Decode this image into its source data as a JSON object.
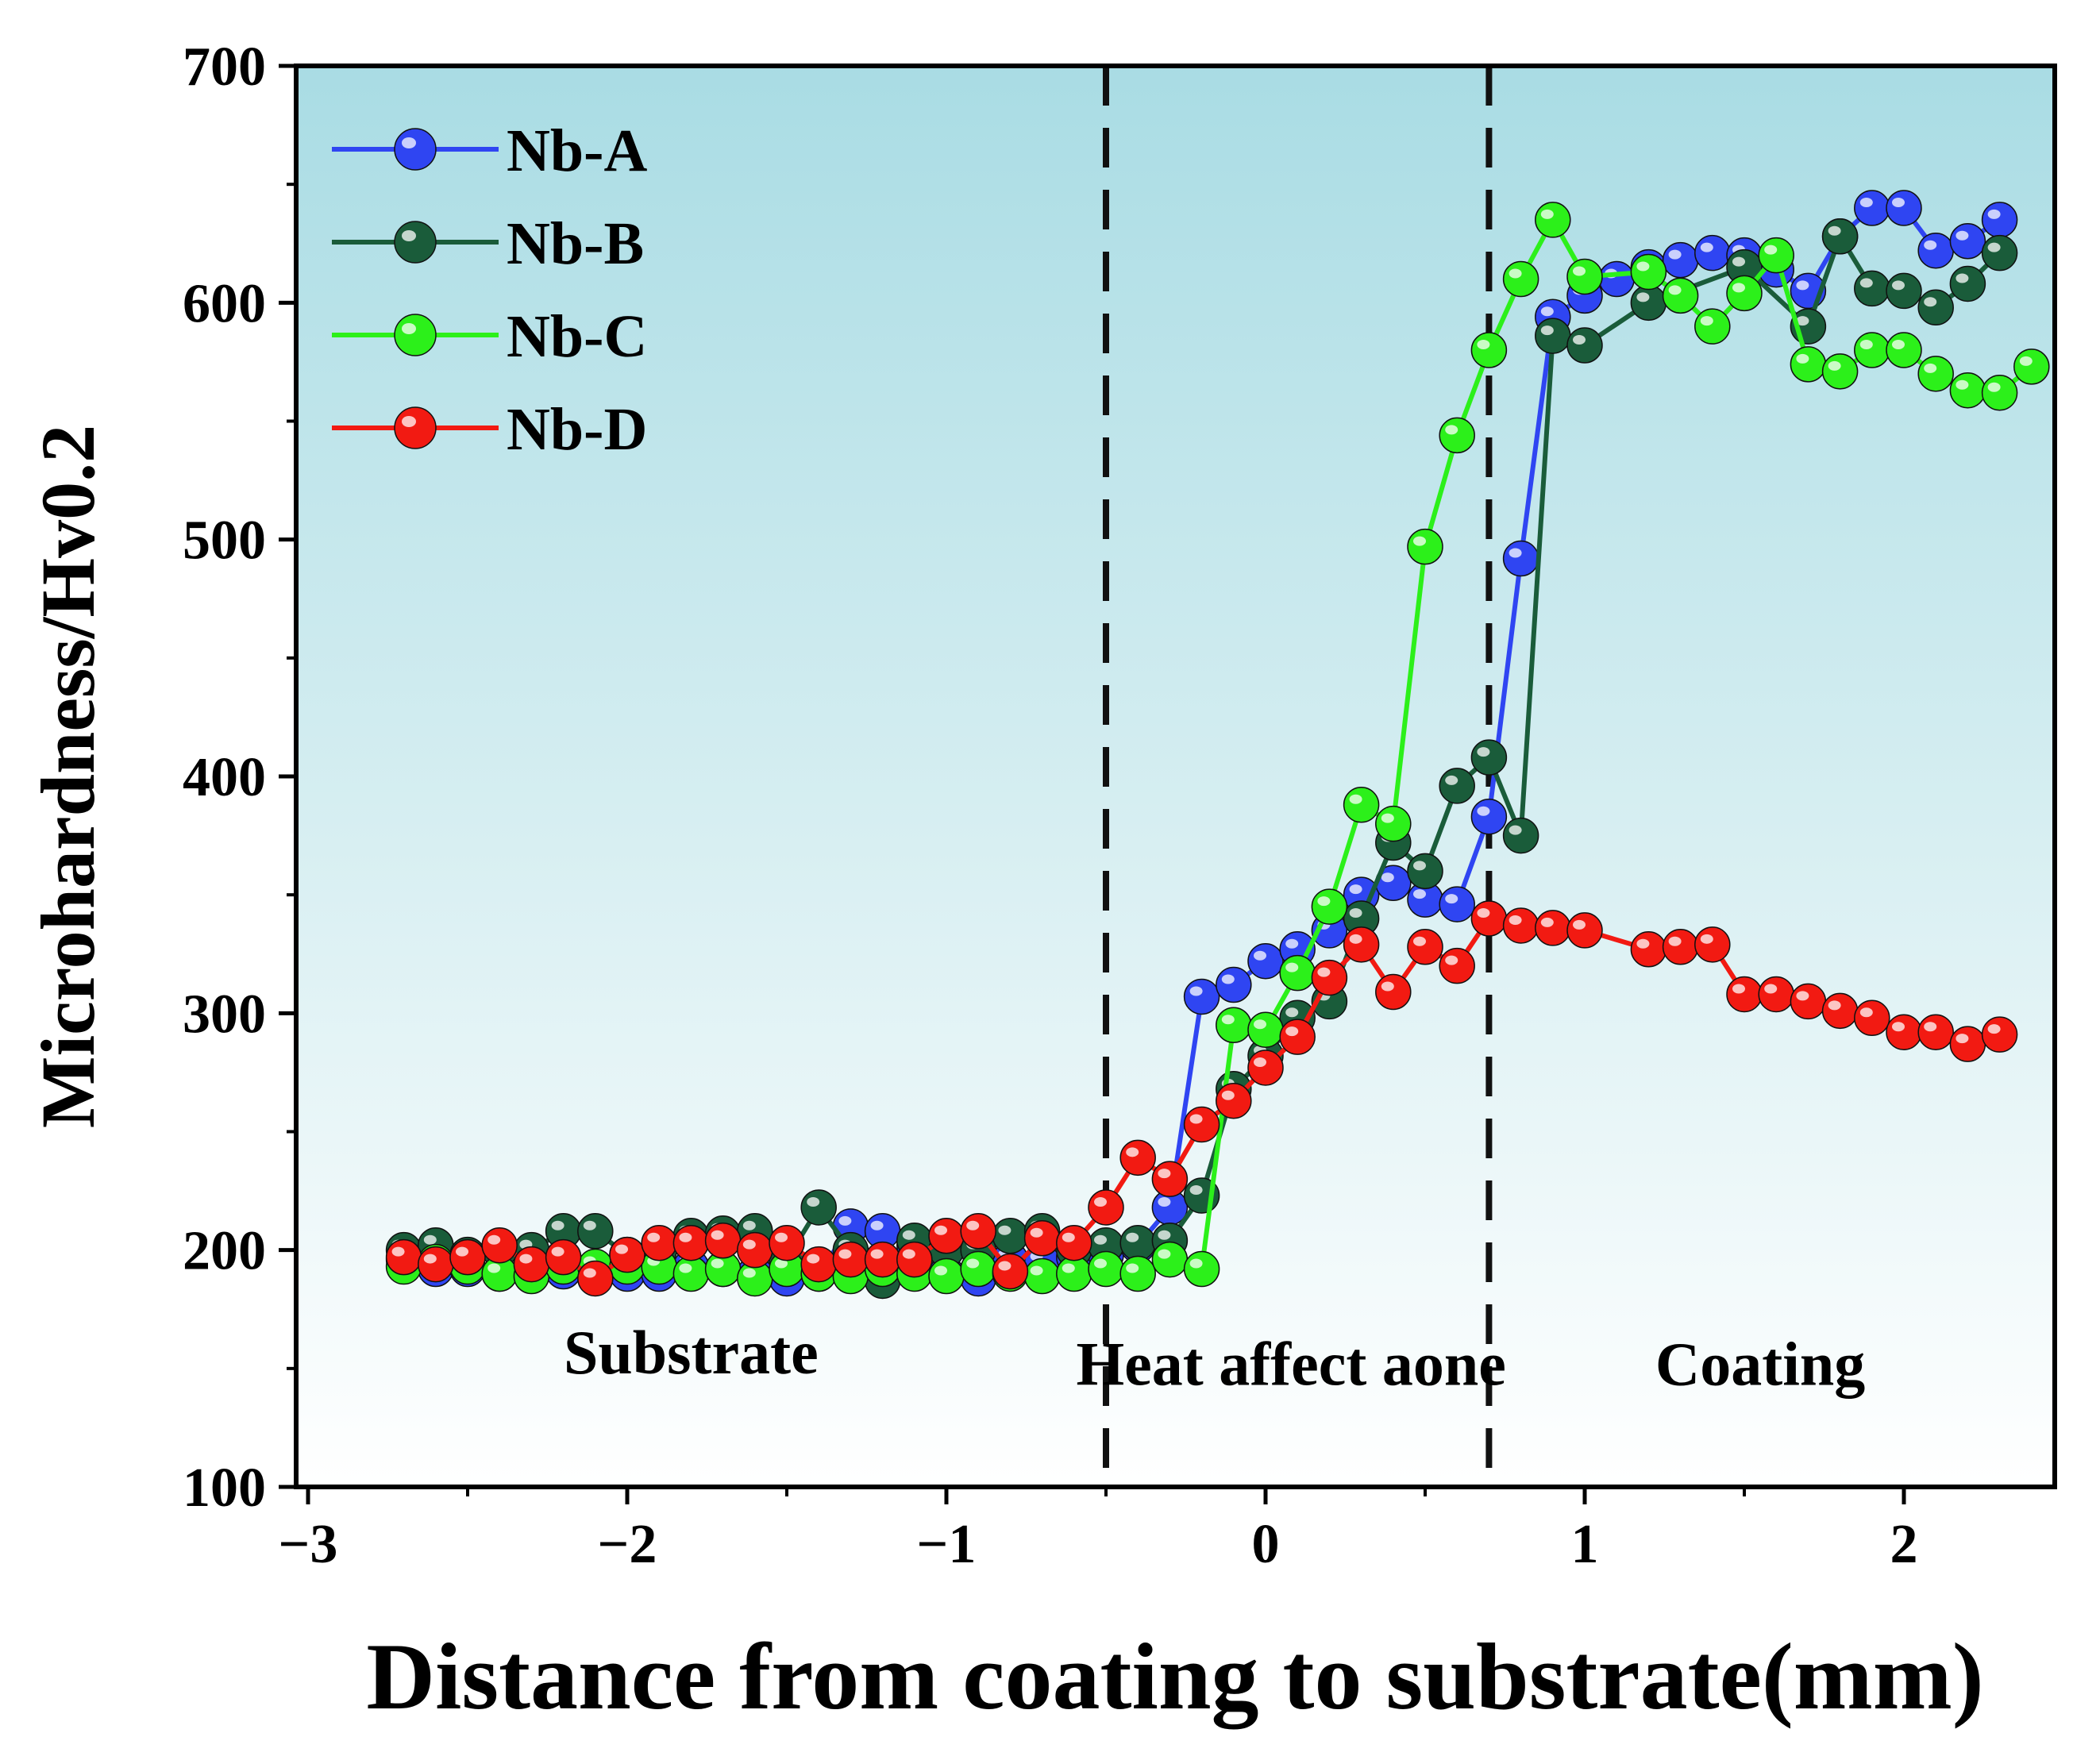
{
  "chart_data": {
    "type": "line",
    "title": "",
    "xlabel": "Distance from coating to substrate(mm)",
    "ylabel": "Microhardness/Hv0.2",
    "xlim": [
      -3,
      2.5
    ],
    "ylim": [
      100,
      700
    ],
    "xticks": [
      -3,
      -2,
      -1,
      0,
      1,
      2
    ],
    "xtick_labels": [
      "−3",
      "−2",
      "−1",
      "0",
      "1",
      "2"
    ],
    "yticks": [
      100,
      200,
      300,
      400,
      500,
      600,
      700
    ],
    "ytick_labels": [
      "100",
      "200",
      "300",
      "400",
      "500",
      "600",
      "700"
    ],
    "grid": false,
    "legend_position": "top-left",
    "boundaries": [
      -0.5,
      0.7
    ],
    "regions": [
      {
        "label": "Substrate",
        "x": -1.8,
        "y": 148
      },
      {
        "label": "Heat affect aone",
        "x": 0.08,
        "y": 143
      },
      {
        "label": "Coating",
        "x": 1.55,
        "y": 143
      }
    ],
    "series": [
      {
        "name": "Nb-A",
        "color": "#2f45f2",
        "x": [
          -2.7,
          -2.6,
          -2.5,
          -2.4,
          -2.3,
          -2.2,
          -2.1,
          -2.0,
          -1.9,
          -1.8,
          -1.7,
          -1.6,
          -1.5,
          -1.4,
          -1.3,
          -1.2,
          -1.1,
          -1.0,
          -0.9,
          -0.8,
          -0.7,
          -0.6,
          -0.5,
          -0.4,
          -0.3,
          -0.2,
          -0.1,
          0.0,
          0.1,
          0.2,
          0.3,
          0.4,
          0.5,
          0.6,
          0.7,
          0.8,
          0.9,
          1.0,
          1.1,
          1.2,
          1.3,
          1.4,
          1.5,
          1.6,
          1.7,
          1.8,
          1.9,
          2.0,
          2.1,
          2.2,
          2.3
        ],
        "y": [
          196,
          192,
          192,
          190,
          190,
          191,
          190,
          190,
          190,
          193,
          192,
          190,
          188,
          190,
          210,
          208,
          202,
          190,
          188,
          196,
          195,
          197,
          198,
          202,
          218,
          307,
          312,
          322,
          327,
          335,
          350,
          355,
          348,
          346,
          383,
          492,
          594,
          603,
          610,
          615,
          618,
          621,
          620,
          614,
          605,
          628,
          640,
          640,
          622,
          626,
          635
        ]
      },
      {
        "name": "Nb-B",
        "color": "#1a5c3a",
        "x": [
          -2.7,
          -2.6,
          -2.5,
          -2.4,
          -2.3,
          -2.2,
          -2.1,
          -2.0,
          -1.9,
          -1.8,
          -1.7,
          -1.6,
          -1.5,
          -1.4,
          -1.3,
          -1.2,
          -1.1,
          -1.0,
          -0.9,
          -0.8,
          -0.7,
          -0.6,
          -0.5,
          -0.4,
          -0.3,
          -0.2,
          -0.1,
          0.0,
          0.1,
          0.2,
          0.3,
          0.4,
          0.5,
          0.6,
          0.7,
          0.8,
          0.9,
          1.0,
          1.2,
          1.5,
          1.7,
          1.8,
          1.9,
          2.0,
          2.1,
          2.2,
          2.3
        ],
        "y": [
          200,
          202,
          198,
          200,
          200,
          208,
          208,
          198,
          200,
          206,
          207,
          208,
          196,
          218,
          200,
          187,
          204,
          200,
          200,
          206,
          208,
          200,
          202,
          203,
          204,
          223,
          268,
          282,
          298,
          305,
          340,
          372,
          360,
          396,
          408,
          375,
          586,
          582,
          600,
          615,
          590,
          628,
          606,
          605,
          598,
          608,
          621
        ]
      },
      {
        "name": "Nb-C",
        "color": "#2cf01a",
        "x": [
          -2.7,
          -2.6,
          -2.5,
          -2.4,
          -2.3,
          -2.2,
          -2.1,
          -2.0,
          -1.9,
          -1.8,
          -1.7,
          -1.6,
          -1.5,
          -1.4,
          -1.3,
          -1.2,
          -1.1,
          -1.0,
          -0.9,
          -0.8,
          -0.7,
          -0.6,
          -0.5,
          -0.4,
          -0.3,
          -0.2,
          -0.1,
          0.0,
          0.1,
          0.2,
          0.3,
          0.4,
          0.5,
          0.6,
          0.7,
          0.8,
          0.9,
          1.0,
          1.2,
          1.3,
          1.4,
          1.5,
          1.6,
          1.7,
          1.8,
          1.9,
          2.0,
          2.1,
          2.2,
          2.3,
          2.4
        ],
        "y": [
          193,
          195,
          193,
          190,
          189,
          193,
          193,
          193,
          193,
          190,
          192,
          188,
          192,
          190,
          189,
          192,
          190,
          189,
          192,
          190,
          189,
          190,
          192,
          190,
          196,
          192,
          295,
          293,
          317,
          345,
          388,
          380,
          497,
          544,
          580,
          610,
          635,
          611,
          613,
          603,
          590,
          604,
          620,
          574,
          571,
          580,
          580,
          570,
          563,
          562,
          573
        ]
      },
      {
        "name": "Nb-D",
        "color": "#f21a12",
        "x": [
          -2.7,
          -2.6,
          -2.5,
          -2.4,
          -2.3,
          -2.2,
          -2.1,
          -2.0,
          -1.9,
          -1.8,
          -1.7,
          -1.6,
          -1.5,
          -1.4,
          -1.3,
          -1.2,
          -1.1,
          -1.0,
          -0.9,
          -0.8,
          -0.7,
          -0.6,
          -0.5,
          -0.4,
          -0.3,
          -0.2,
          -0.1,
          0.0,
          0.1,
          0.2,
          0.3,
          0.4,
          0.5,
          0.6,
          0.7,
          0.8,
          0.9,
          1.0,
          1.2,
          1.3,
          1.4,
          1.5,
          1.6,
          1.7,
          1.8,
          1.9,
          2.0,
          2.1,
          2.2,
          2.3
        ],
        "y": [
          197,
          194,
          197,
          202,
          194,
          197,
          188,
          198,
          203,
          203,
          204,
          200,
          203,
          194,
          196,
          196,
          196,
          206,
          208,
          191,
          205,
          203,
          218,
          239,
          230,
          253,
          263,
          277,
          290,
          315,
          329,
          309,
          328,
          320,
          340,
          337,
          336,
          335,
          327,
          328,
          329,
          308,
          308,
          305,
          301,
          298,
          292,
          292,
          287,
          291
        ]
      }
    ]
  }
}
